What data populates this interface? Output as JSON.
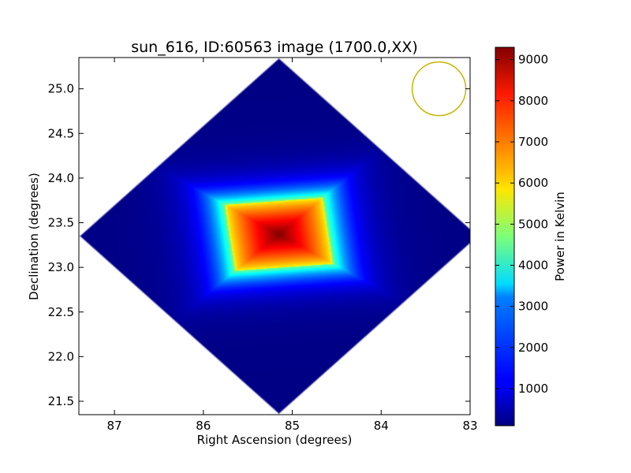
{
  "chart_data": {
    "type": "heatmap",
    "title": "sun_616, ID:60563 image (1700.0,XX)",
    "xlabel": "Right Ascension (degrees)",
    "ylabel": "Declination (degrees)",
    "xlim": [
      87.4,
      83.0
    ],
    "ylim": [
      21.35,
      25.35
    ],
    "x_ticks": [
      87,
      86,
      85,
      84,
      83
    ],
    "y_ticks": [
      21.5,
      22.0,
      22.5,
      23.0,
      23.5,
      24.0,
      24.5,
      25.0
    ],
    "grid": false,
    "colorbar": {
      "label": "Power in Kelvin",
      "range": [
        100,
        9300
      ],
      "ticks": [
        1000,
        2000,
        3000,
        4000,
        5000,
        6000,
        7000,
        8000,
        9000
      ],
      "colormap": "jet"
    },
    "map": {
      "coverage_center": [
        85.15,
        23.35
      ],
      "coverage_half_diagonal_ra": 2.25,
      "coverage_half_diagonal_dec": 2.0,
      "peak_center": [
        85.15,
        23.37
      ],
      "peak_value": 9300,
      "background_value": 150,
      "hot_square_half_size_ra": 0.55,
      "hot_square_half_size_dec": 0.37
    },
    "beam_circle": {
      "center": [
        83.35,
        25.0
      ],
      "radius_dec": 0.3,
      "color": "#c8b400"
    }
  }
}
